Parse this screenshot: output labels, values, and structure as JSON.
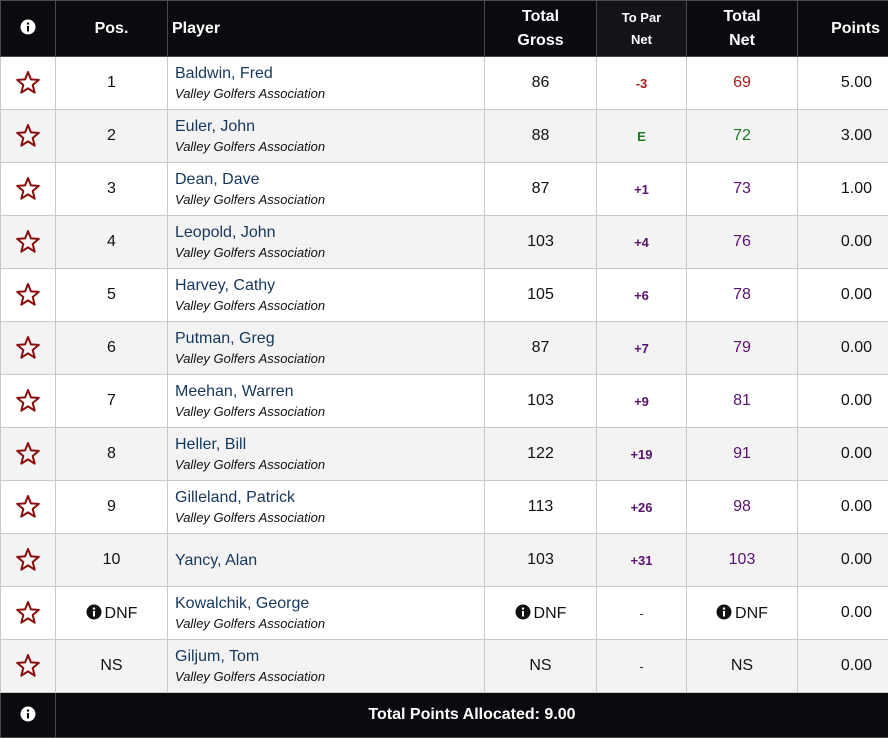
{
  "colors": {
    "header_bg": "#0b0b0f",
    "player_link": "#16375c",
    "star_outline": "#8b0d0d",
    "under_par": "#b3191b",
    "even_par": "#1f7a1f",
    "over_par": "#5a1070",
    "row_alt": "#f3f3f3",
    "border": "#c9c9c9"
  },
  "header": {
    "info_icon": "info-circle-icon",
    "pos": "Pos.",
    "player": "Player",
    "total_gross_line1": "Total",
    "total_gross_line2": "Gross",
    "to_par_line1": "To Par",
    "to_par_line2": "Net",
    "total_net_line1": "Total",
    "total_net_line2": "Net",
    "points": "Points"
  },
  "rows": [
    {
      "star_icon": "star-outline-icon",
      "pos": "1",
      "pos_dnf": false,
      "name": "Baldwin, Fred",
      "assoc": "Valley Golfers Association",
      "gross": "86",
      "gross_dnf": false,
      "to_par": "-3",
      "to_par_class": "under",
      "net": "69",
      "net_dnf": false,
      "points": "5.00"
    },
    {
      "star_icon": "star-outline-icon",
      "pos": "2",
      "pos_dnf": false,
      "name": "Euler, John",
      "assoc": "Valley Golfers Association",
      "gross": "88",
      "gross_dnf": false,
      "to_par": "E",
      "to_par_class": "even",
      "net": "72",
      "net_dnf": false,
      "points": "3.00"
    },
    {
      "star_icon": "star-outline-icon",
      "pos": "3",
      "pos_dnf": false,
      "name": "Dean, Dave",
      "assoc": "Valley Golfers Association",
      "gross": "87",
      "gross_dnf": false,
      "to_par": "+1",
      "to_par_class": "over",
      "net": "73",
      "net_dnf": false,
      "points": "1.00"
    },
    {
      "star_icon": "star-outline-icon",
      "pos": "4",
      "pos_dnf": false,
      "name": "Leopold, John",
      "assoc": "Valley Golfers Association",
      "gross": "103",
      "gross_dnf": false,
      "to_par": "+4",
      "to_par_class": "over",
      "net": "76",
      "net_dnf": false,
      "points": "0.00"
    },
    {
      "star_icon": "star-outline-icon",
      "pos": "5",
      "pos_dnf": false,
      "name": "Harvey, Cathy",
      "assoc": "Valley Golfers Association",
      "gross": "105",
      "gross_dnf": false,
      "to_par": "+6",
      "to_par_class": "over",
      "net": "78",
      "net_dnf": false,
      "points": "0.00"
    },
    {
      "star_icon": "star-outline-icon",
      "pos": "6",
      "pos_dnf": false,
      "name": "Putman, Greg",
      "assoc": "Valley Golfers Association",
      "gross": "87",
      "gross_dnf": false,
      "to_par": "+7",
      "to_par_class": "over",
      "net": "79",
      "net_dnf": false,
      "points": "0.00"
    },
    {
      "star_icon": "star-outline-icon",
      "pos": "7",
      "pos_dnf": false,
      "name": "Meehan, Warren",
      "assoc": "Valley Golfers Association",
      "gross": "103",
      "gross_dnf": false,
      "to_par": "+9",
      "to_par_class": "over",
      "net": "81",
      "net_dnf": false,
      "points": "0.00"
    },
    {
      "star_icon": "star-outline-icon",
      "pos": "8",
      "pos_dnf": false,
      "name": "Heller, Bill",
      "assoc": "Valley Golfers Association",
      "gross": "122",
      "gross_dnf": false,
      "to_par": "+19",
      "to_par_class": "over",
      "net": "91",
      "net_dnf": false,
      "points": "0.00"
    },
    {
      "star_icon": "star-outline-icon",
      "pos": "9",
      "pos_dnf": false,
      "name": "Gilleland, Patrick",
      "assoc": "Valley Golfers Association",
      "gross": "113",
      "gross_dnf": false,
      "to_par": "+26",
      "to_par_class": "over",
      "net": "98",
      "net_dnf": false,
      "points": "0.00"
    },
    {
      "star_icon": "star-outline-icon",
      "pos": "10",
      "pos_dnf": false,
      "name": "Yancy, Alan",
      "assoc": "",
      "gross": "103",
      "gross_dnf": false,
      "to_par": "+31",
      "to_par_class": "over",
      "net": "103",
      "net_dnf": false,
      "points": "0.00"
    },
    {
      "star_icon": "star-outline-icon",
      "pos": "DNF",
      "pos_dnf": true,
      "name": "Kowalchik, George",
      "assoc": "Valley Golfers Association",
      "gross": "DNF",
      "gross_dnf": true,
      "to_par": "-",
      "to_par_class": "none",
      "net": "DNF",
      "net_dnf": true,
      "points": "0.00"
    },
    {
      "star_icon": "star-outline-icon",
      "pos": "NS",
      "pos_dnf": false,
      "name": "Giljum, Tom",
      "assoc": "Valley Golfers Association",
      "gross": "NS",
      "gross_dnf": false,
      "to_par": "-",
      "to_par_class": "none",
      "net": "NS",
      "net_dnf": false,
      "points": "0.00"
    }
  ],
  "footer": {
    "info_icon": "info-circle-icon",
    "total_label": "Total Points Allocated: 9.00"
  }
}
